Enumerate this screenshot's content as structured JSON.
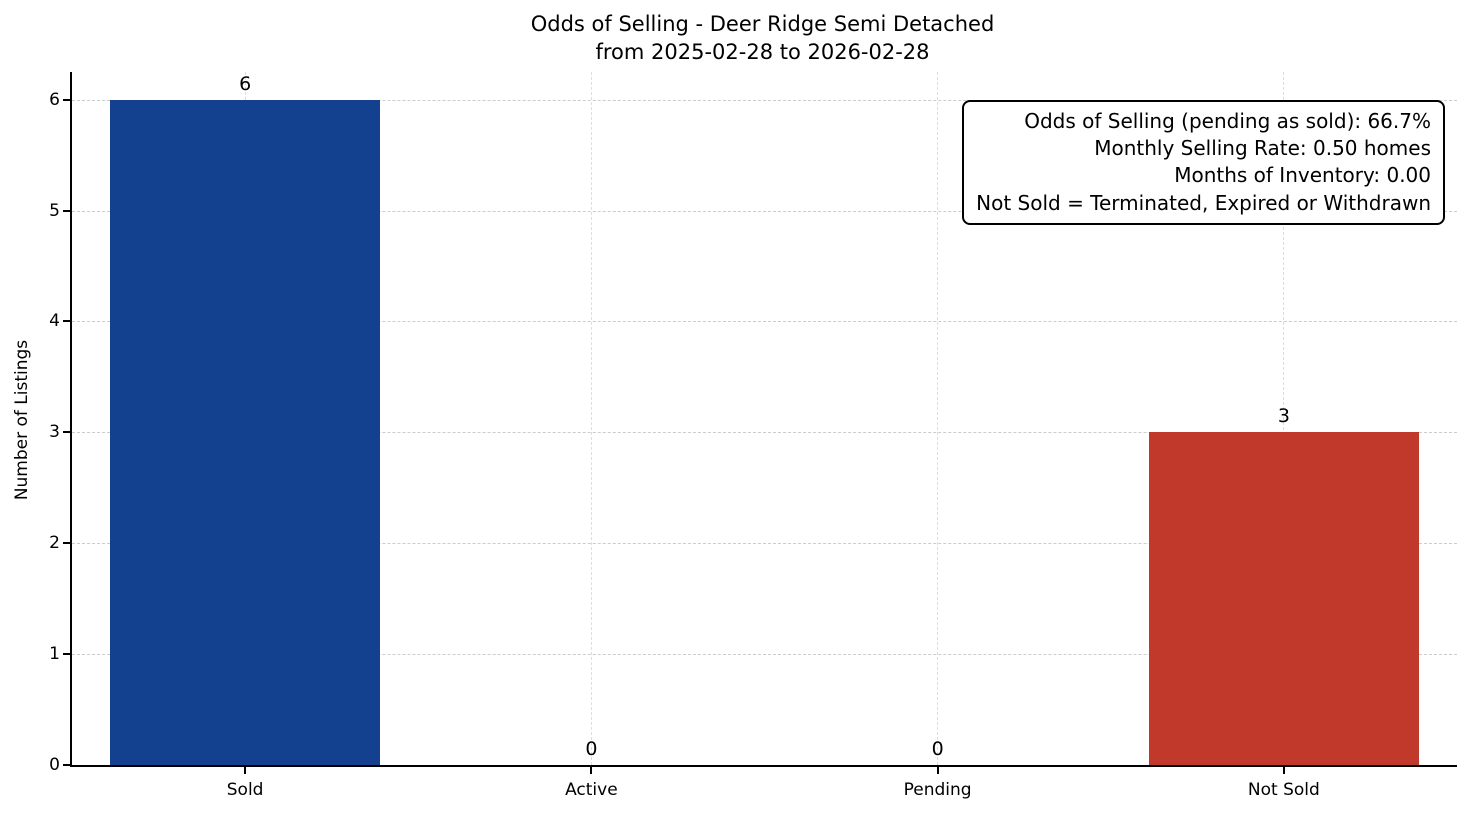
{
  "chart_data": {
    "type": "bar",
    "title": "Odds of Selling - Deer Ridge Semi Detached",
    "subtitle": "from 2025-02-28 to 2026-02-28",
    "categories": [
      "Sold",
      "Active",
      "Pending",
      "Not Sold"
    ],
    "values": [
      6,
      0,
      0,
      3
    ],
    "value_labels": [
      "6",
      "0",
      "0",
      "3"
    ],
    "bar_colors": [
      "#14418f",
      "#888888",
      "#888888",
      "#c0392b"
    ],
    "xlabel": "",
    "ylabel": "Number of Listings",
    "ylim": [
      0,
      6.25
    ],
    "yticks": [
      0,
      1,
      2,
      3,
      4,
      5,
      6
    ],
    "grid": "dashed",
    "legend": "none",
    "annotation_lines": [
      "Odds of Selling (pending as sold): 66.7%",
      "Monthly Selling Rate: 0.50 homes",
      "Months of Inventory: 0.00",
      "Not Sold = Terminated, Expired or Withdrawn"
    ]
  }
}
